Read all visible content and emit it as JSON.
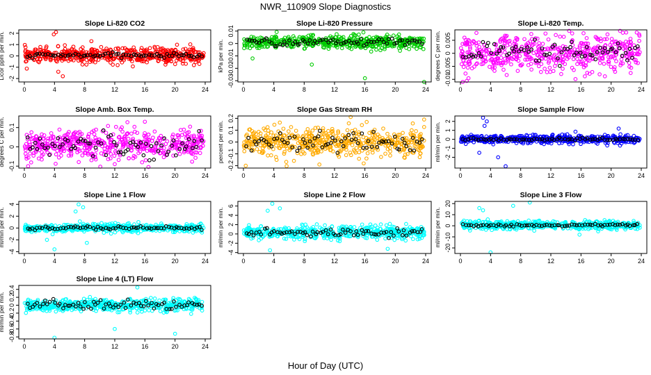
{
  "figure": {
    "title": "NWR_110909  Slope Diagnostics",
    "xlabel": "Hour of Day (UTC)"
  },
  "chart_data": [
    {
      "type": "scatter",
      "title": "Slope Li-820 CO2",
      "ylabel": "Licor ppm per min.",
      "xlim": [
        0,
        24
      ],
      "ylim": [
        -2.3,
        2.3
      ],
      "xticks": [
        0,
        4,
        8,
        12,
        16,
        20,
        24
      ],
      "yticks": [
        -2,
        -1,
        0,
        1,
        2
      ],
      "color": "#ff0000",
      "spread": 0.45,
      "center": 0.05,
      "black_spread": 0.15,
      "outliers": [
        [
          4.2,
          2.1
        ],
        [
          3.9,
          1.9
        ],
        [
          5.1,
          -1.8
        ],
        [
          4.5,
          -1.4
        ],
        [
          8.9,
          1.3
        ]
      ]
    },
    {
      "type": "scatter",
      "title": "Slope Li-820 Pressure",
      "ylabel": "kPa per min.",
      "xlim": [
        0,
        24
      ],
      "ylim": [
        -0.031,
        0.011
      ],
      "xticks": [
        0,
        4,
        8,
        12,
        16,
        20,
        24
      ],
      "yticks": [
        -0.03,
        -0.02,
        -0.01,
        0,
        0.01
      ],
      "color": "#00cc00",
      "spread": 0.0035,
      "center": 0.001,
      "black_spread": 0.0025,
      "outliers": [
        [
          16.0,
          -0.028
        ],
        [
          23.8,
          -0.031
        ],
        [
          9.0,
          -0.017
        ],
        [
          1.2,
          -0.012
        ],
        [
          15.8,
          0.009
        ]
      ]
    },
    {
      "type": "scatter",
      "title": "Slope Li-820 Temp.",
      "ylabel": "degrees C per min.",
      "xlim": [
        0,
        24
      ],
      "ylim": [
        -0.011,
        0.009
      ],
      "xticks": [
        0,
        4,
        8,
        12,
        16,
        20,
        24
      ],
      "yticks": [
        -0.01,
        -0.005,
        0,
        0.005
      ],
      "color": "#ff00ff",
      "spread": 0.0045,
      "center": 0.0,
      "black_spread": 0.004,
      "outliers": [
        [
          0.3,
          -0.011
        ],
        [
          23.4,
          0.008
        ],
        [
          22.0,
          0.008
        ]
      ]
    },
    {
      "type": "scatter",
      "title": "Slope Amb. Box Temp.",
      "ylabel": "degrees C per min.",
      "xlim": [
        0,
        24
      ],
      "ylim": [
        -0.11,
        0.16
      ],
      "xticks": [
        0,
        4,
        8,
        12,
        16,
        20,
        24
      ],
      "yticks": [
        -0.1,
        0,
        0.1
      ],
      "color": "#ff00ff",
      "spread": 0.05,
      "center": 0.01,
      "black_spread": 0.05,
      "outliers": [
        [
          0.5,
          -0.1
        ],
        [
          16.0,
          0.13
        ],
        [
          12.0,
          -0.09
        ]
      ]
    },
    {
      "type": "scatter",
      "title": "Slope Gas Stream RH",
      "ylabel": "percent per min.",
      "xlim": [
        0,
        24
      ],
      "ylim": [
        -0.22,
        0.22
      ],
      "xticks": [
        0,
        4,
        8,
        12,
        16,
        20,
        24
      ],
      "yticks": [
        -0.2,
        -0.1,
        0,
        0.1,
        0.2
      ],
      "color": "#ffaa00",
      "spread": 0.08,
      "center": 0.0,
      "black_spread": 0.07,
      "outliers": [
        [
          0.3,
          -0.2
        ],
        [
          23.8,
          0.19
        ],
        [
          10.0,
          -0.19
        ]
      ]
    },
    {
      "type": "scatter",
      "title": "Slope Sample Flow",
      "ylabel": "ml/min per min.",
      "xlim": [
        0,
        24
      ],
      "ylim": [
        -3.2,
        2.6
      ],
      "xticks": [
        0,
        4,
        8,
        12,
        16,
        20,
        24
      ],
      "yticks": [
        -2,
        -1,
        0,
        1,
        2
      ],
      "color": "#0000ff",
      "spread": 0.3,
      "center": 0.0,
      "black_spread": 0.12,
      "outliers": [
        [
          3.0,
          2.4
        ],
        [
          3.5,
          2.0
        ],
        [
          3.2,
          1.5
        ],
        [
          6.0,
          -3.0
        ],
        [
          5.0,
          -2.0
        ],
        [
          2.5,
          -1.5
        ],
        [
          21.0,
          1.2
        ]
      ]
    },
    {
      "type": "scatter",
      "title": "Slope Line 1 Flow",
      "ylabel": "ml/min per min.",
      "xlim": [
        0,
        24
      ],
      "ylim": [
        -4.3,
        4.5
      ],
      "xticks": [
        0,
        4,
        8,
        12,
        16,
        20,
        24
      ],
      "yticks": [
        -4,
        -2,
        0,
        2,
        4
      ],
      "color": "#00ffff",
      "spread": 0.45,
      "center": 0.0,
      "black_spread": 0.25,
      "outliers": [
        [
          7.2,
          4.0
        ],
        [
          7.8,
          3.5
        ],
        [
          6.8,
          2.8
        ],
        [
          8.3,
          -2.5
        ],
        [
          3.0,
          -2.0
        ],
        [
          4.0,
          -3.6
        ]
      ]
    },
    {
      "type": "scatter",
      "title": "Slope Line 2 Flow",
      "ylabel": "ml/min per min.",
      "xlim": [
        0,
        24
      ],
      "ylim": [
        -4.2,
        7.0
      ],
      "xticks": [
        0,
        4,
        8,
        12,
        16,
        20,
        24
      ],
      "yticks": [
        -4,
        -2,
        0,
        2,
        4,
        6
      ],
      "color": "#00ffff",
      "spread": 0.9,
      "center": 0.3,
      "black_spread": 0.8,
      "outliers": [
        [
          3.8,
          6.5
        ],
        [
          3.2,
          5.0
        ],
        [
          4.8,
          5.5
        ],
        [
          3.5,
          -3.5
        ],
        [
          19.0,
          -3.2
        ]
      ]
    },
    {
      "type": "scatter",
      "title": "Slope Line 3 Flow",
      "ylabel": "ml/min per min.",
      "xlim": [
        0,
        24
      ],
      "ylim": [
        -25,
        22
      ],
      "xticks": [
        0,
        4,
        8,
        12,
        16,
        20,
        24
      ],
      "yticks": [
        -20,
        -10,
        0,
        10,
        20
      ],
      "color": "#00ffff",
      "spread": 2.5,
      "center": 0.5,
      "black_spread": 1.0,
      "outliers": [
        [
          2.5,
          16
        ],
        [
          3.0,
          14
        ],
        [
          9.2,
          21
        ],
        [
          7.0,
          18
        ],
        [
          4.0,
          -24
        ],
        [
          15.8,
          -8
        ]
      ]
    },
    {
      "type": "scatter",
      "title": "Slope Line 4 (LT) Flow",
      "ylabel": "ml/min per min.",
      "xlim": [
        0,
        24
      ],
      "ylim": [
        -0.85,
        0.5
      ],
      "xticks": [
        0,
        4,
        8,
        12,
        16,
        20,
        24
      ],
      "yticks": [
        -0.8,
        -0.6,
        -0.4,
        -0.2,
        0,
        0.2,
        0.4
      ],
      "color": "#00ffff",
      "spread": 0.1,
      "center": 0.0,
      "black_spread": 0.1,
      "outliers": [
        [
          4.0,
          -0.82
        ],
        [
          20.0,
          -0.72
        ],
        [
          15.0,
          0.45
        ],
        [
          12.0,
          -0.6
        ]
      ]
    }
  ]
}
